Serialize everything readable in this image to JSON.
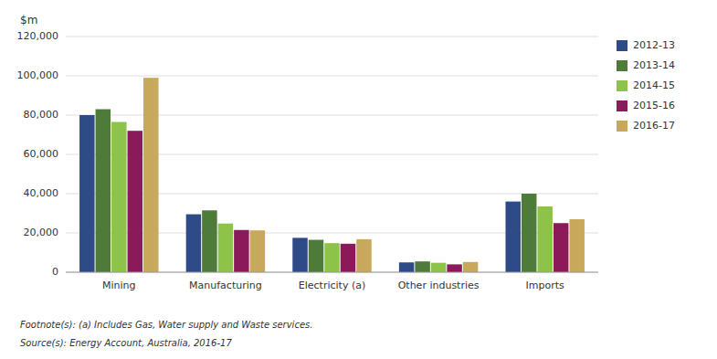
{
  "chart_data": {
    "type": "bar",
    "ylabel": "$m",
    "categories": [
      "Mining",
      "Manufacturing",
      "Electricity (a)",
      "Other industries",
      "Imports"
    ],
    "series": [
      {
        "name": "2012-13",
        "color": "#2E4A87",
        "values": [
          80000,
          29500,
          17500,
          5000,
          36000
        ]
      },
      {
        "name": "2013-14",
        "color": "#4E7A3A",
        "values": [
          83000,
          31500,
          16500,
          5500,
          40000
        ]
      },
      {
        "name": "2014-15",
        "color": "#8DC34A",
        "values": [
          76500,
          24800,
          14800,
          4800,
          33500
        ]
      },
      {
        "name": "2015-16",
        "color": "#8B1A5A",
        "values": [
          72000,
          21500,
          14500,
          4000,
          25000
        ]
      },
      {
        "name": "2016-17",
        "color": "#C8A85A",
        "values": [
          99000,
          21300,
          16800,
          5200,
          27000
        ]
      }
    ],
    "ylim": [
      0,
      120000
    ],
    "yticks": [
      0,
      {
        "value": 20000,
        "label": "20,000"
      },
      {
        "value": 40000,
        "label": "40,000"
      },
      {
        "value": 60000,
        "label": "60,000"
      },
      {
        "value": 80000,
        "label": "80,000"
      },
      {
        "value": 100000,
        "label": "100,000"
      },
      {
        "value": 120000,
        "label": "120,000"
      }
    ],
    "grid": true,
    "legend": "right",
    "footnote": "Footnote(s): (a) Includes Gas, Water supply and Waste services.",
    "source": "Source(s): Energy Account, Australia, 2016-17"
  }
}
